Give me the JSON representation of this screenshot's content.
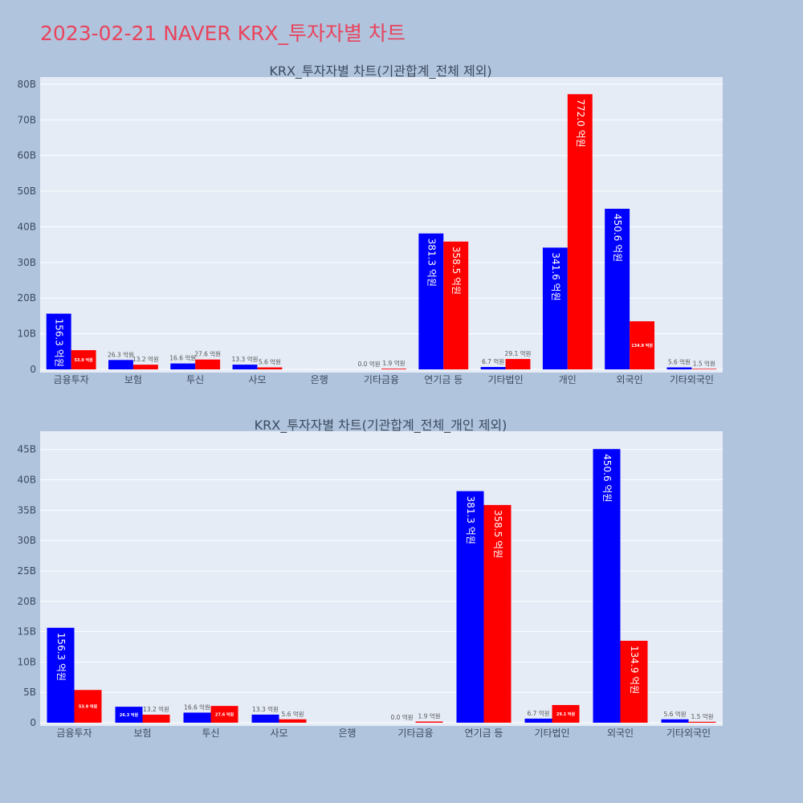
{
  "page": {
    "title": "2023-02-21 NAVER KRX_투자자별 차트",
    "background": "#b0c4de",
    "plot_background": "#e5ecf6",
    "title_color": "#e8445c"
  },
  "colors": {
    "series_a": "#0000ff",
    "series_b": "#ff0000"
  },
  "chart_data": [
    {
      "type": "bar",
      "title": "KRX_투자자별 차트(기관합계_전체 제외)",
      "categories": [
        "금융투자",
        "보험",
        "투신",
        "사모",
        "은행",
        "기타금융",
        "연기금 등",
        "기타법인",
        "개인",
        "외국인",
        "기타외국인"
      ],
      "series": [
        {
          "color": "#0000ff",
          "values": [
            15.63,
            2.63,
            1.66,
            1.33,
            0,
            0.0,
            38.13,
            0.67,
            34.16,
            45.06,
            0.56
          ],
          "labels": [
            "156.3 억원",
            "26.3 억원",
            "16.6 억원",
            "13.3 억원",
            "",
            "0.0 억원",
            "381.3 억원",
            "6.7 억원",
            "341.6 억원",
            "450.6 억원",
            "5.6 억원"
          ]
        },
        {
          "color": "#ff0000",
          "values": [
            5.39,
            1.32,
            2.76,
            0.56,
            0,
            0.19,
            35.85,
            2.91,
            77.2,
            13.49,
            0.15
          ],
          "labels": [
            "53.9 억원",
            "13.2 억원",
            "27.6 억원",
            "5.6 억원",
            "",
            "1.9 억원",
            "358.5 억원",
            "29.1 억원",
            "772.0 억원",
            "134.9 억원",
            "1.5 억원"
          ]
        }
      ],
      "ylim": [
        0,
        82
      ],
      "yticks": [
        0,
        10,
        20,
        30,
        40,
        50,
        60,
        70,
        80
      ],
      "yticklabels": [
        "0",
        "10B",
        "20B",
        "30B",
        "40B",
        "50B",
        "60B",
        "70B",
        "80B"
      ],
      "grid": true
    },
    {
      "type": "bar",
      "title": "KRX_투자자별 차트(기관합계_전체_개인 제외)",
      "categories": [
        "금융투자",
        "보험",
        "투신",
        "사모",
        "은행",
        "기타금융",
        "연기금 등",
        "기타법인",
        "외국인",
        "기타외국인"
      ],
      "series": [
        {
          "color": "#0000ff",
          "values": [
            15.63,
            2.63,
            1.66,
            1.33,
            0,
            0.0,
            38.13,
            0.67,
            45.06,
            0.56
          ],
          "labels": [
            "156.3 억원",
            "26.3 억원",
            "16.6 억원",
            "13.3 억원",
            "",
            "0.0 억원",
            "381.3 억원",
            "6.7 억원",
            "450.6 억원",
            "5.6 억원"
          ]
        },
        {
          "color": "#ff0000",
          "values": [
            5.39,
            1.32,
            2.76,
            0.56,
            0,
            0.19,
            35.85,
            2.91,
            13.49,
            0.15
          ],
          "labels": [
            "53.9 억원",
            "13.2 억원",
            "27.6 억원",
            "5.6 억원",
            "",
            "1.9 억원",
            "358.5 억원",
            "29.1 억원",
            "134.9 억원",
            "1.5 억원"
          ]
        }
      ],
      "ylim": [
        0,
        48
      ],
      "yticks": [
        0,
        5,
        10,
        15,
        20,
        25,
        30,
        35,
        40,
        45
      ],
      "yticklabels": [
        "0",
        "5B",
        "10B",
        "15B",
        "20B",
        "25B",
        "30B",
        "35B",
        "40B",
        "45B"
      ],
      "grid": true
    }
  ]
}
